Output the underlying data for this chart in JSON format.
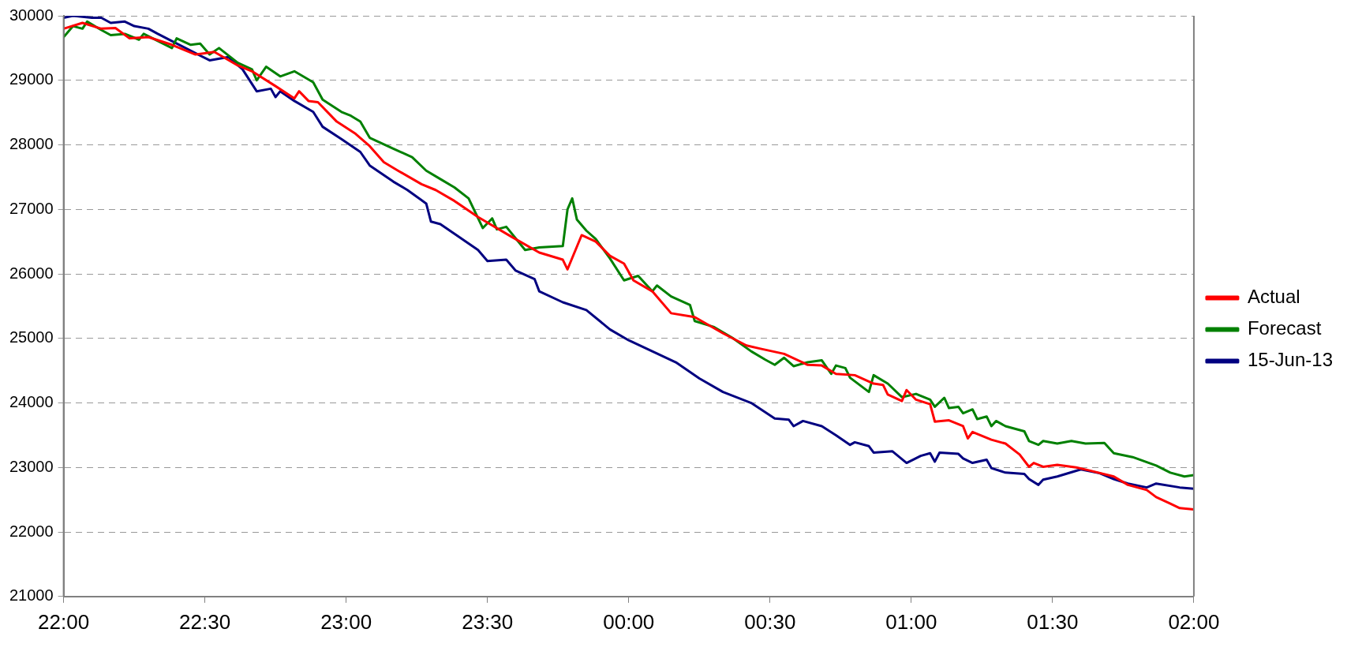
{
  "chart_data": {
    "type": "line",
    "xlim": [
      "--06-15T22:00",
      "--06-16T02:00"
    ],
    "xticks": [
      {
        "value": "--06-15T22:00",
        "label": "22:00"
      },
      {
        "value": "--06-15T22:30",
        "label": "22:30"
      },
      {
        "value": "--06-15T23:00",
        "label": "23:00"
      },
      {
        "value": "--06-15T23:30",
        "label": "23:30"
      },
      {
        "value": "--06-16T00:00",
        "label": "00:00"
      },
      {
        "value": "--06-16T00:30",
        "label": "00:30"
      },
      {
        "value": "--06-16T01:00",
        "label": "01:00"
      },
      {
        "value": "--06-16T01:30",
        "label": "01:30"
      },
      {
        "value": "--06-16T02:00",
        "label": "02:00"
      }
    ],
    "ylim": [
      21000,
      30000
    ],
    "yticks": [
      21000,
      22000,
      23000,
      24000,
      25000,
      26000,
      27000,
      28000,
      29000,
      30000
    ],
    "grid": "y",
    "legend": "right",
    "marker": "none",
    "line_style": "solid",
    "series": [
      {
        "name": "Actual",
        "color": "#ff0000",
        "x": [
          "--06-15T22:00",
          "--06-15T22:04",
          "--06-15T22:08",
          "--06-15T22:11",
          "--06-15T22:14",
          "--06-15T22:18",
          "--06-15T22:23",
          "--06-15T22:28",
          "--06-15T22:32",
          "--06-15T22:37",
          "--06-15T22:40",
          "--06-15T22:45",
          "--06-15T22:49",
          "--06-15T22:50",
          "--06-15T22:52",
          "--06-15T22:54",
          "--06-15T22:58",
          "--06-15T23:02",
          "--06-15T23:05",
          "--06-15T23:08",
          "--06-15T23:11",
          "--06-15T23:16",
          "--06-15T23:19",
          "--06-15T23:23",
          "--06-15T23:28",
          "--06-15T23:35",
          "--06-15T23:41",
          "--06-15T23:46",
          "--06-15T23:47",
          "--06-15T23:50",
          "--06-15T23:53",
          "--06-15T23:56",
          "--06-15T23:59",
          "--06-16T00:01",
          "--06-16T00:05",
          "--06-16T00:09",
          "--06-16T00:14",
          "--06-16T00:20",
          "--06-16T00:25",
          "--06-16T00:28",
          "--06-16T00:33",
          "--06-16T00:38",
          "--06-16T00:41",
          "--06-16T00:44",
          "--06-16T00:48",
          "--06-16T00:52",
          "--06-16T00:54",
          "--06-16T00:55",
          "--06-16T00:58",
          "--06-16T00:59",
          "--06-16T01:01",
          "--06-16T01:04",
          "--06-16T01:05",
          "--06-16T01:08",
          "--06-16T01:11",
          "--06-16T01:12",
          "--06-16T01:13",
          "--06-16T01:17",
          "--06-16T01:20",
          "--06-16T01:23",
          "--06-16T01:25",
          "--06-16T01:26",
          "--06-16T01:28",
          "--06-16T01:31",
          "--06-16T01:35",
          "--06-16T01:38",
          "--06-16T01:43",
          "--06-16T01:46",
          "--06-16T01:50",
          "--06-16T01:52",
          "--06-16T01:55",
          "--06-16T01:57",
          "--06-16T02:00"
        ],
        "values": [
          29800,
          29890,
          29800,
          29810,
          29650,
          29670,
          29550,
          29400,
          29440,
          29230,
          29140,
          28910,
          28720,
          28830,
          28680,
          28660,
          28360,
          28170,
          27980,
          27730,
          27600,
          27390,
          27300,
          27130,
          26880,
          26580,
          26330,
          26220,
          26070,
          26600,
          26500,
          26280,
          26160,
          25900,
          25730,
          25390,
          25330,
          25080,
          24890,
          24840,
          24760,
          24590,
          24580,
          24450,
          24430,
          24300,
          24280,
          24130,
          24030,
          24200,
          24050,
          23980,
          23710,
          23730,
          23640,
          23450,
          23550,
          23430,
          23370,
          23200,
          23010,
          23070,
          23010,
          23040,
          23000,
          22950,
          22860,
          22730,
          22650,
          22540,
          22440,
          22370,
          22350
        ]
      },
      {
        "name": "Forecast",
        "color": "#008000",
        "x": [
          "--06-15T22:00",
          "--06-15T22:02",
          "--06-15T22:04",
          "--06-15T22:05",
          "--06-15T22:08",
          "--06-15T22:10",
          "--06-15T22:13",
          "--06-15T22:16",
          "--06-15T22:17",
          "--06-15T22:20",
          "--06-15T22:23",
          "--06-15T22:24",
          "--06-15T22:27",
          "--06-15T22:29",
          "--06-15T22:31",
          "--06-15T22:33",
          "--06-15T22:37",
          "--06-15T22:40",
          "--06-15T22:41",
          "--06-15T22:43",
          "--06-15T22:46",
          "--06-15T22:49",
          "--06-15T22:53",
          "--06-15T22:55",
          "--06-15T22:59",
          "--06-15T23:01",
          "--06-15T23:03",
          "--06-15T23:05",
          "--06-15T23:10",
          "--06-15T23:14",
          "--06-15T23:17",
          "--06-15T23:20",
          "--06-15T23:23",
          "--06-15T23:26",
          "--06-15T23:29",
          "--06-15T23:31",
          "--06-15T23:32",
          "--06-15T23:34",
          "--06-15T23:38",
          "--06-15T23:41",
          "--06-15T23:46",
          "--06-15T23:47",
          "--06-15T23:48",
          "--06-15T23:49",
          "--06-15T23:51",
          "--06-15T23:53",
          "--06-15T23:56",
          "--06-15T23:59",
          "--06-16T00:02",
          "--06-16T00:05",
          "--06-16T00:06",
          "--06-16T00:09",
          "--06-16T00:13",
          "--06-16T00:14",
          "--06-16T00:18",
          "--06-16T00:22",
          "--06-16T00:26",
          "--06-16T00:29",
          "--06-16T00:31",
          "--06-16T00:33",
          "--06-16T00:35",
          "--06-16T00:38",
          "--06-16T00:41",
          "--06-16T00:43",
          "--06-16T00:44",
          "--06-16T00:46",
          "--06-16T00:47",
          "--06-16T00:51",
          "--06-16T00:52",
          "--06-16T00:55",
          "--06-16T00:58",
          "--06-16T01:01",
          "--06-16T01:04",
          "--06-16T01:05",
          "--06-16T01:07",
          "--06-16T01:08",
          "--06-16T01:10",
          "--06-16T01:11",
          "--06-16T01:13",
          "--06-16T01:14",
          "--06-16T01:16",
          "--06-16T01:17",
          "--06-16T01:18",
          "--06-16T01:20",
          "--06-16T01:24",
          "--06-16T01:25",
          "--06-16T01:27",
          "--06-16T01:28",
          "--06-16T01:31",
          "--06-16T01:34",
          "--06-16T01:37",
          "--06-16T01:41",
          "--06-16T01:43",
          "--06-16T01:47",
          "--06-16T01:52",
          "--06-16T01:55",
          "--06-16T01:58",
          "--06-16T02:00"
        ],
        "values": [
          29670,
          29840,
          29800,
          29910,
          29780,
          29700,
          29720,
          29630,
          29720,
          29610,
          29500,
          29650,
          29550,
          29570,
          29400,
          29500,
          29270,
          29170,
          29000,
          29210,
          29060,
          29140,
          28970,
          28700,
          28510,
          28450,
          28360,
          28110,
          27940,
          27810,
          27600,
          27470,
          27340,
          27170,
          26710,
          26860,
          26690,
          26730,
          26370,
          26410,
          26430,
          27000,
          27170,
          26840,
          26670,
          26540,
          26240,
          25900,
          25970,
          25730,
          25820,
          25650,
          25520,
          25270,
          25180,
          25010,
          24800,
          24670,
          24590,
          24700,
          24570,
          24630,
          24660,
          24450,
          24580,
          24540,
          24390,
          24170,
          24430,
          24300,
          24090,
          24140,
          24050,
          23940,
          24080,
          23920,
          23940,
          23840,
          23900,
          23750,
          23790,
          23640,
          23720,
          23640,
          23560,
          23410,
          23350,
          23410,
          23370,
          23410,
          23370,
          23380,
          23220,
          23160,
          23030,
          22920,
          22860,
          22880
        ]
      },
      {
        "name": "15-Jun-13",
        "color": "#000080",
        "x": [
          "--06-15T22:00",
          "--06-15T22:02",
          "--06-15T22:06",
          "--06-15T22:08",
          "--06-15T22:10",
          "--06-15T22:13",
          "--06-15T22:15",
          "--06-15T22:18",
          "--06-15T22:20",
          "--06-15T22:24",
          "--06-15T22:28",
          "--06-15T22:31",
          "--06-15T22:35",
          "--06-15T22:38",
          "--06-15T22:41",
          "--06-15T22:44",
          "--06-15T22:45",
          "--06-15T22:46",
          "--06-15T22:49",
          "--06-15T22:53",
          "--06-15T22:55",
          "--06-15T22:59",
          "--06-15T23:03",
          "--06-15T23:05",
          "--06-15T23:10",
          "--06-15T23:13",
          "--06-15T23:17",
          "--06-15T23:18",
          "--06-15T23:20",
          "--06-15T23:23",
          "--06-15T23:28",
          "--06-15T23:30",
          "--06-15T23:34",
          "--06-15T23:36",
          "--06-15T23:40",
          "--06-15T23:41",
          "--06-15T23:46",
          "--06-15T23:51",
          "--06-15T23:56",
          "--06-16T00:00",
          "--06-16T00:05",
          "--06-16T00:10",
          "--06-16T00:15",
          "--06-16T00:20",
          "--06-16T00:26",
          "--06-16T00:31",
          "--06-16T00:34",
          "--06-16T00:35",
          "--06-16T00:37",
          "--06-16T00:41",
          "--06-16T00:44",
          "--06-16T00:47",
          "--06-16T00:48",
          "--06-16T00:51",
          "--06-16T00:52",
          "--06-16T00:56",
          "--06-16T00:59",
          "--06-16T01:02",
          "--06-16T01:04",
          "--06-16T01:05",
          "--06-16T01:06",
          "--06-16T01:10",
          "--06-16T01:11",
          "--06-16T01:13",
          "--06-16T01:16",
          "--06-16T01:17",
          "--06-16T01:20",
          "--06-16T01:24",
          "--06-16T01:25",
          "--06-16T01:27",
          "--06-16T01:28",
          "--06-16T01:31",
          "--06-16T01:36",
          "--06-16T01:40",
          "--06-16T01:43",
          "--06-16T01:46",
          "--06-16T01:50",
          "--06-16T01:52",
          "--06-16T01:57",
          "--06-16T02:00"
        ],
        "values": [
          29970,
          30000,
          29970,
          29970,
          29890,
          29910,
          29840,
          29800,
          29720,
          29570,
          29420,
          29310,
          29360,
          29170,
          28830,
          28870,
          28740,
          28830,
          28680,
          28510,
          28280,
          28090,
          27890,
          27680,
          27430,
          27300,
          27090,
          26810,
          26770,
          26620,
          26370,
          26200,
          26220,
          26050,
          25920,
          25730,
          25560,
          25440,
          25140,
          24970,
          24800,
          24630,
          24380,
          24170,
          24000,
          23760,
          23740,
          23640,
          23720,
          23640,
          23500,
          23350,
          23390,
          23330,
          23230,
          23250,
          23070,
          23180,
          23220,
          23090,
          23230,
          23210,
          23140,
          23070,
          23120,
          22990,
          22920,
          22900,
          22820,
          22730,
          22810,
          22860,
          22970,
          22910,
          22820,
          22750,
          22690,
          22750,
          22690,
          22670
        ]
      }
    ]
  }
}
